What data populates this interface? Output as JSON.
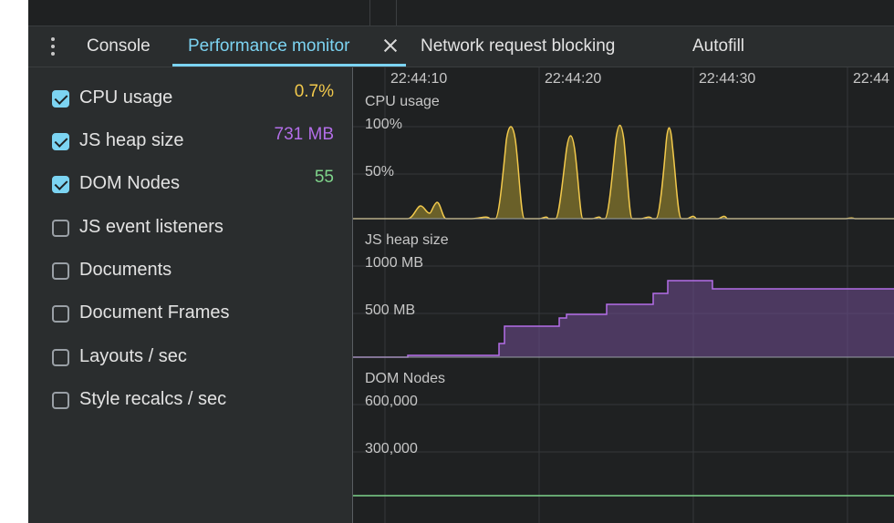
{
  "tabs": {
    "items": [
      {
        "label": "Console",
        "active": false
      },
      {
        "label": "Performance monitor",
        "active": true
      },
      {
        "label": "Network request blocking",
        "active": false
      },
      {
        "label": "Autofill",
        "active": false
      }
    ]
  },
  "icons": {
    "menu": "kebab-menu-icon",
    "close": "close-icon",
    "checkbox": "checkbox-icon"
  },
  "metrics": [
    {
      "label": "CPU usage",
      "checked": true,
      "value": "0.7%",
      "color": "#f2c94c"
    },
    {
      "label": "JS heap size",
      "checked": true,
      "value": "731 MB",
      "color": "#b36ee8"
    },
    {
      "label": "DOM Nodes",
      "checked": true,
      "value": "55",
      "color": "#7fd48b"
    },
    {
      "label": "JS event listeners",
      "checked": false,
      "value": "",
      "color": ""
    },
    {
      "label": "Documents",
      "checked": false,
      "value": "",
      "color": ""
    },
    {
      "label": "Document Frames",
      "checked": false,
      "value": "",
      "color": ""
    },
    {
      "label": "Layouts / sec",
      "checked": false,
      "value": "",
      "color": ""
    },
    {
      "label": "Style recalcs / sec",
      "checked": false,
      "value": "",
      "color": ""
    }
  ],
  "timeline": {
    "labels": [
      "22:44:10",
      "22:44:20",
      "22:44:30",
      "22:44"
    ]
  },
  "charts": {
    "cpu": {
      "title": "CPU usage",
      "grid": [
        "100%",
        "50%"
      ]
    },
    "heap": {
      "title": "JS heap size",
      "grid": [
        "1000 MB",
        "500 MB"
      ]
    },
    "dom": {
      "title": "DOM Nodes",
      "grid": [
        "600,000",
        "300,000"
      ]
    }
  },
  "colors": {
    "accent": "#7cd4f2",
    "cpu": "#f2c94c",
    "heap": "#b36ee8",
    "dom": "#7fd48b",
    "background": "#1f2122",
    "panel": "#2a2d2e"
  }
}
